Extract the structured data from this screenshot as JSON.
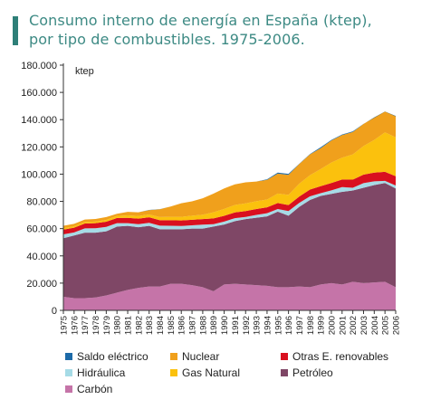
{
  "title_line1": "Consumo interno de energía en España (ktep),",
  "title_line2": "por tipo de combustibles. 1975-2006.",
  "chart_data": {
    "type": "area",
    "stacked": true,
    "ylabel": "ktep",
    "ylim": [
      0,
      180000
    ],
    "yticks": [
      0,
      20000,
      40000,
      60000,
      80000,
      100000,
      120000,
      140000,
      160000,
      180000
    ],
    "ytick_labels": [
      "0",
      "20.000",
      "40.000",
      "60.000",
      "80.000",
      "100.000",
      "120.000",
      "140.000",
      "160.000",
      "180.000"
    ],
    "categories": [
      "1975",
      "1976",
      "1977",
      "1978",
      "1979",
      "1980",
      "1981",
      "1982",
      "1983",
      "1984",
      "1985",
      "1986",
      "1987",
      "1988",
      "1989",
      "1990",
      "1991",
      "1992",
      "1993",
      "1994",
      "1995",
      "1996",
      "1997",
      "1998",
      "1999",
      "2000",
      "2001",
      "2002",
      "2003",
      "2004",
      "2005",
      "2006"
    ],
    "series": [
      {
        "name": "Carbón",
        "color": "#c574a8",
        "values": [
          10000,
          9000,
          9000,
          9500,
          11000,
          13000,
          15000,
          16500,
          17500,
          17500,
          19500,
          19500,
          18500,
          17000,
          14000,
          19000,
          19500,
          19000,
          18500,
          18000,
          17000,
          17000,
          17500,
          17000,
          19000,
          20000,
          19000,
          21000,
          20000,
          20500,
          21000,
          17000
        ]
      },
      {
        "name": "Petróleo",
        "color": "#7f4766",
        "values": [
          43000,
          46000,
          48000,
          47500,
          47000,
          48500,
          47000,
          44500,
          44500,
          42000,
          40000,
          40000,
          41500,
          43000,
          47500,
          44000,
          46000,
          48000,
          49500,
          51000,
          55500,
          52500,
          58500,
          64000,
          65000,
          65500,
          68000,
          67000,
          70000,
          71500,
          72500,
          72500
        ]
      },
      {
        "name": "Hidráulica",
        "color": "#a6dbe6",
        "values": [
          2800,
          2200,
          3200,
          3300,
          3300,
          2500,
          2000,
          2300,
          2300,
          2700,
          2600,
          2400,
          2400,
          2900,
          1800,
          2200,
          2200,
          1600,
          2100,
          2300,
          1900,
          3400,
          2900,
          2700,
          2000,
          2600,
          3500,
          2000,
          3400,
          2700,
          1600,
          2200
        ]
      },
      {
        "name": "Otras E. renovables",
        "color": "#d9101f",
        "values": [
          3500,
          3500,
          3600,
          3700,
          3800,
          3800,
          3900,
          4000,
          4000,
          4000,
          4100,
          4100,
          4100,
          4100,
          4200,
          4200,
          4200,
          4300,
          4300,
          4300,
          4400,
          4400,
          4600,
          5000,
          5200,
          5400,
          5600,
          6000,
          6200,
          6400,
          6600,
          6800
        ]
      },
      {
        "name": "Gas Natural",
        "color": "#fbc10d",
        "values": [
          1000,
          1000,
          1100,
          1200,
          1300,
          1500,
          1800,
          2000,
          2100,
          2300,
          2500,
          2700,
          3000,
          3200,
          4500,
          5100,
          5500,
          5600,
          5700,
          5800,
          7000,
          7500,
          9500,
          10500,
          12500,
          15000,
          16000,
          18500,
          21000,
          24000,
          29000,
          28500
        ]
      },
      {
        "name": "Nuclear",
        "color": "#f0a01c",
        "values": [
          1800,
          1800,
          1800,
          1900,
          2100,
          1600,
          2600,
          2700,
          3200,
          5700,
          7500,
          9900,
          10500,
          12100,
          13700,
          15000,
          15100,
          15500,
          14500,
          14400,
          14600,
          14700,
          14400,
          15300,
          15300,
          16200,
          16600,
          16400,
          16200,
          16500,
          15300,
          15700
        ]
      },
      {
        "name": "Saldo eléctrico",
        "color": "#1d6aa8",
        "values": [
          0,
          0,
          0,
          0,
          0,
          0,
          0,
          0,
          100,
          100,
          0,
          0,
          0,
          0,
          0,
          0,
          0,
          0,
          0,
          400,
          700,
          700,
          200,
          200,
          700,
          400,
          400,
          500,
          100,
          -300,
          -100,
          -300
        ]
      }
    ],
    "legend_position": "bottom"
  }
}
